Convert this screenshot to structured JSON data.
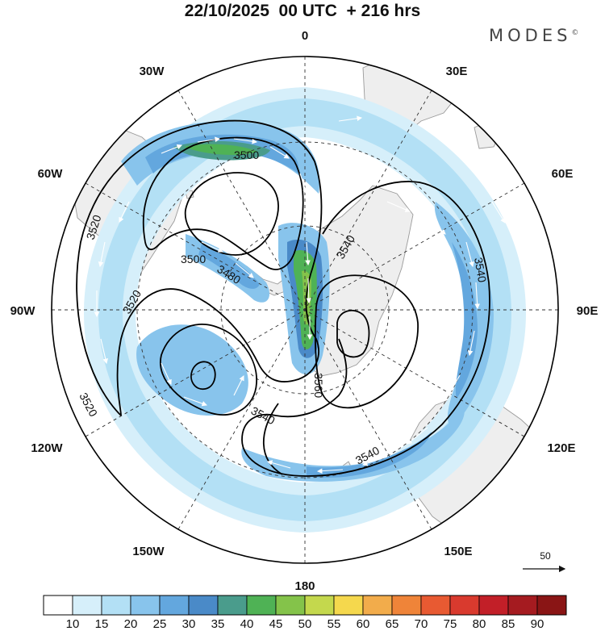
{
  "header": {
    "title": "22/10/2025  00 UTC  + 216 hrs",
    "brand": "MODES",
    "brand_mark": "©"
  },
  "map": {
    "projection": "polar stereographic (south pole)",
    "longitude_labels": [
      "0",
      "30E",
      "60E",
      "90E",
      "120E",
      "150E",
      "180",
      "150W",
      "120W",
      "90W",
      "60W",
      "30W"
    ],
    "contour_labels": [
      "3500",
      "3500",
      "3480",
      "3520",
      "3520",
      "3520",
      "3540",
      "3540",
      "3540",
      "3540",
      "3560"
    ],
    "reference_vector": "50",
    "colors": {
      "land": "#eeeeee",
      "coast": "#9a9a9a",
      "grid": "#333333",
      "contour": "#000000",
      "arrow": "#ffffff"
    }
  },
  "colorbar": {
    "ticks": [
      "10",
      "15",
      "20",
      "25",
      "30",
      "35",
      "40",
      "45",
      "50",
      "55",
      "60",
      "65",
      "70",
      "75",
      "80",
      "85",
      "90"
    ],
    "colors": [
      "#ffffff",
      "#d6effa",
      "#b3e0f5",
      "#88c4ec",
      "#63a7de",
      "#4a8ac8",
      "#4a9c8c",
      "#4fb255",
      "#84c34a",
      "#c4d84d",
      "#f5d84d",
      "#f2ac4b",
      "#ef8439",
      "#e85a32",
      "#d93a2e",
      "#c21f28",
      "#a51b20",
      "#8a1515"
    ]
  }
}
